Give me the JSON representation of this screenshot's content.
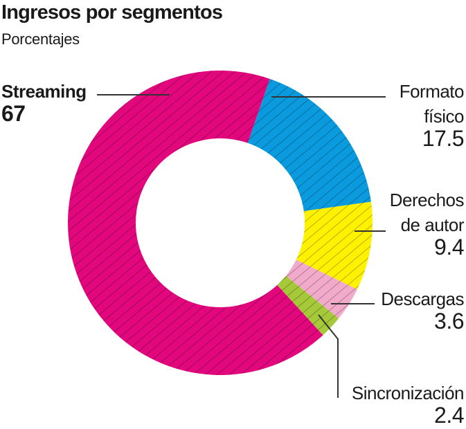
{
  "title": "Ingresos por segmentos",
  "subtitle": "Porcentajes",
  "chart_data": {
    "type": "pie",
    "variant": "donut",
    "title": "Ingresos por segmentos",
    "subtitle": "Porcentajes",
    "hatched": true,
    "slices": [
      {
        "label": "Formato físico",
        "value": 17.5,
        "color": "#0a9ade"
      },
      {
        "label": "Derechos de autor",
        "value": 9.4,
        "color": "#fff200"
      },
      {
        "label": "Descargas",
        "value": 3.6,
        "color": "#f2aacb"
      },
      {
        "label": "Sincronización",
        "value": 2.4,
        "color": "#a6c93a"
      },
      {
        "label": "Streaming",
        "value": 67,
        "color": "#e2077c"
      }
    ],
    "labels": {
      "streaming": {
        "name": "Streaming",
        "value": "67"
      },
      "formato_l1": "Formato",
      "formato_l2": "físico",
      "formato_value": "17.5",
      "derechos_l1": "Derechos",
      "derechos_l2": "de autor",
      "derechos_value": "9.4",
      "descargas": "Descargas",
      "descargas_value": "3.6",
      "sincronizacion": "Sincronización",
      "sincronizacion_value": "2.4"
    }
  }
}
